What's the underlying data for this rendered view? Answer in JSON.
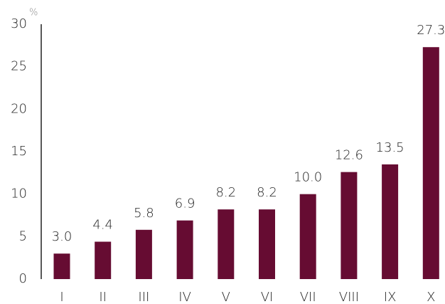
{
  "chart_data": {
    "type": "bar",
    "y_unit": "%",
    "categories": [
      "I",
      "II",
      "III",
      "IV",
      "V",
      "VI",
      "VII",
      "VIII",
      "IX",
      "X"
    ],
    "values": [
      3.0,
      4.4,
      5.8,
      6.9,
      8.2,
      8.2,
      10.0,
      12.6,
      13.5,
      27.3
    ],
    "value_labels": [
      "3.0",
      "4.4",
      "5.8",
      "6.9",
      "8.2",
      "8.2",
      "10.0",
      "12.6",
      "13.5",
      "27.3"
    ],
    "color": "#660c32",
    "ylim": [
      0,
      30
    ],
    "yticks": [
      0,
      5,
      10,
      15,
      20,
      25,
      30
    ],
    "grid": false
  }
}
